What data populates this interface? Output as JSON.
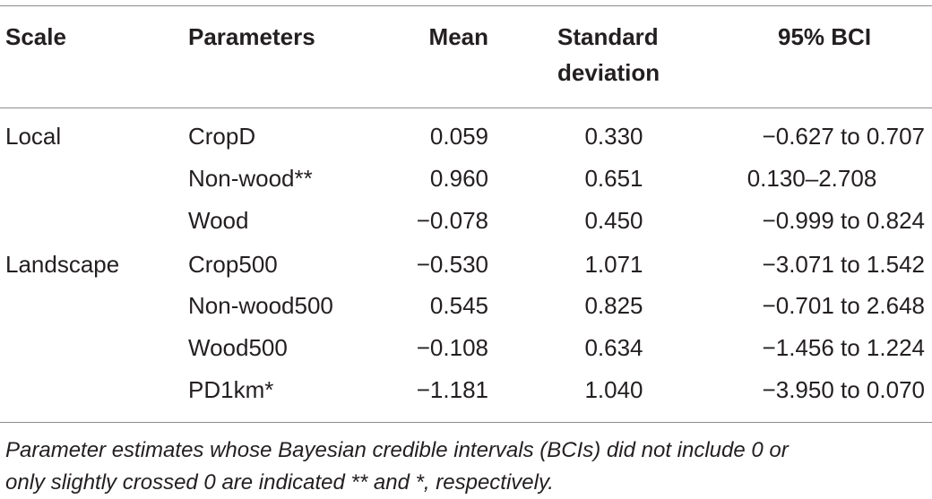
{
  "table": {
    "headers": {
      "scale": "Scale",
      "parameters": "Parameters",
      "mean": "Mean",
      "sd_line1": "Standard",
      "sd_line2": "deviation",
      "bci": "95% BCI"
    },
    "rows": [
      {
        "scale": "Local",
        "parameter": "CropD",
        "mean": "0.059",
        "sd": "0.330",
        "bci": "−0.627 to 0.707"
      },
      {
        "scale": "",
        "parameter": "Non-wood**",
        "mean": "0.960",
        "sd": "0.651",
        "bci": "0.130–2.708"
      },
      {
        "scale": "",
        "parameter": "Wood",
        "mean": "−0.078",
        "sd": "0.450",
        "bci": "−0.999 to 0.824"
      },
      {
        "scale": "Landscape",
        "parameter": "Crop500",
        "mean": "−0.530",
        "sd": "1.071",
        "bci": "−3.071 to 1.542"
      },
      {
        "scale": "",
        "parameter": "Non-wood500",
        "mean": "0.545",
        "sd": "0.825",
        "bci": "−0.701 to 2.648"
      },
      {
        "scale": "",
        "parameter": "Wood500",
        "mean": "−0.108",
        "sd": "0.634",
        "bci": "−1.456 to 1.224"
      },
      {
        "scale": "",
        "parameter": "PD1km*",
        "mean": "−1.181",
        "sd": "1.040",
        "bci": "−3.950 to 0.070"
      }
    ]
  },
  "footnote": "Parameter estimates whose Bayesian credible intervals (BCIs) did not include 0 or\nonly slightly crossed 0 are indicated ** and *, respectively."
}
